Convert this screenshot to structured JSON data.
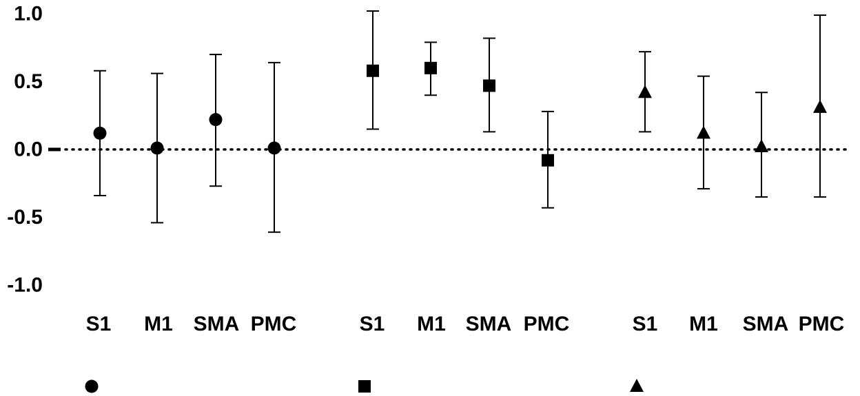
{
  "chart_data": {
    "type": "scatter",
    "subtype": "dot-with-error-bars",
    "ylim": [
      -1.0,
      1.0
    ],
    "yticks": [
      "1.0",
      "0.5",
      "0.0",
      "-0.5",
      "-1.0"
    ],
    "reference_line": {
      "y": 0,
      "style": "dotted"
    },
    "grid": false,
    "groups": [
      {
        "marker": "circle",
        "categories": [
          "S1",
          "M1",
          "SMA",
          "PMC"
        ],
        "values": [
          0.12,
          0.01,
          0.22,
          0.01
        ],
        "lower": [
          -0.34,
          -0.54,
          -0.27,
          -0.61
        ],
        "upper": [
          0.58,
          0.56,
          0.7,
          0.64
        ]
      },
      {
        "marker": "square",
        "categories": [
          "S1",
          "M1",
          "SMA",
          "PMC"
        ],
        "values": [
          0.58,
          0.6,
          0.47,
          -0.08
        ],
        "lower": [
          0.15,
          0.4,
          0.13,
          -0.43
        ],
        "upper": [
          1.02,
          0.79,
          0.82,
          0.28
        ]
      },
      {
        "marker": "triangle",
        "categories": [
          "S1",
          "M1",
          "SMA",
          "PMC"
        ],
        "values": [
          0.42,
          0.12,
          0.02,
          0.31
        ],
        "lower": [
          0.13,
          -0.29,
          -0.35,
          -0.35
        ],
        "upper": [
          0.72,
          0.54,
          0.42,
          0.99
        ]
      }
    ]
  }
}
